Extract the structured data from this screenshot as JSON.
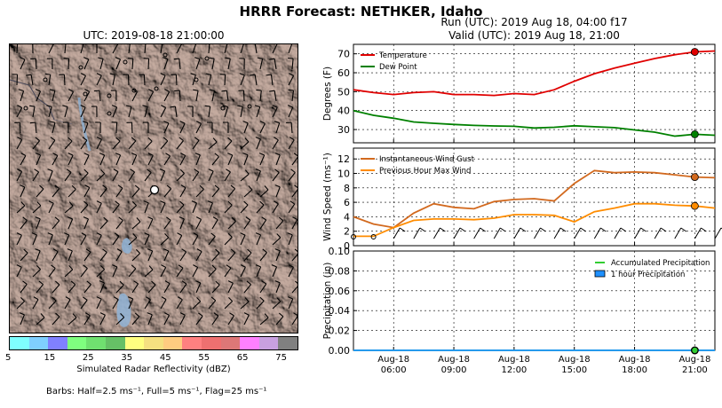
{
  "title": "HRRR Forecast: NETHKER, Idaho",
  "map": {
    "title": "UTC: 2019-08-18 21:00:00",
    "colorbar": {
      "label": "Simulated Radar Reflectivity (dBZ)",
      "ticks": [
        "5",
        "15",
        "25",
        "35",
        "45",
        "55",
        "65",
        "75"
      ],
      "colors": [
        "#7fffff",
        "#7fcfff",
        "#8080ff",
        "#7fff7f",
        "#70e070",
        "#66c066",
        "#ffff80",
        "#f5e080",
        "#ffcc80",
        "#ff8080",
        "#ee7070",
        "#dd7777",
        "#ff80ff",
        "#c8a0e0",
        "#808080"
      ]
    },
    "barb_note": "Barbs: Half=2.5 ms⁻¹, Full=5 ms⁻¹, Flag=25 ms⁻¹"
  },
  "run": {
    "line1": "Run (UTC): 2019 Aug 18, 04:00 f17",
    "line2": "Valid (UTC): 2019 Aug 18, 21:00"
  },
  "chart_data": [
    {
      "type": "line",
      "ylabel": "Degrees (F)",
      "ylim": [
        23,
        75
      ],
      "yticks": [
        30,
        40,
        50,
        60,
        70
      ],
      "legend_position": "top-left",
      "x": [
        4,
        5,
        6,
        7,
        8,
        9,
        10,
        11,
        12,
        13,
        14,
        15,
        16,
        17,
        18,
        19,
        20,
        21,
        22
      ],
      "series": [
        {
          "name": "Temperature",
          "color": "#e00000",
          "values": [
            51,
            49.5,
            48.5,
            49.5,
            50,
            48.5,
            48.5,
            48,
            49,
            48.5,
            51,
            55.5,
            59.5,
            62.5,
            65,
            67.5,
            69.5,
            71,
            71.5
          ]
        },
        {
          "name": "Dew Point",
          "color": "#008000",
          "values": [
            40,
            37.5,
            36,
            34,
            33.3,
            32.7,
            32.2,
            31.9,
            31.7,
            30.8,
            31.2,
            32,
            31.5,
            31,
            29.8,
            28.6,
            26.5,
            27.5,
            27
          ]
        }
      ]
    },
    {
      "type": "line",
      "ylabel": "Wind Speed (ms⁻¹)",
      "ylim": [
        0,
        13.5
      ],
      "yticks": [
        0,
        2,
        4,
        6,
        8,
        10,
        12
      ],
      "legend_position": "top-left",
      "x": [
        4,
        5,
        6,
        7,
        8,
        9,
        10,
        11,
        12,
        13,
        14,
        15,
        16,
        17,
        18,
        19,
        20,
        21,
        22
      ],
      "series": [
        {
          "name": "Instantaneous Wind Gust",
          "color": "#d2691e",
          "values": [
            4,
            3,
            2.5,
            4.5,
            5.8,
            5.3,
            5.1,
            6.1,
            6.4,
            6.5,
            6.2,
            8.6,
            10.4,
            10.1,
            10.2,
            10.1,
            9.8,
            9.5,
            9.4
          ]
        },
        {
          "name": "Previous Hour Max Wind",
          "color": "#ff8c00",
          "values": [
            1.3,
            1.3,
            2.5,
            3.5,
            3.7,
            3.7,
            3.6,
            3.8,
            4.3,
            4.3,
            4.2,
            3.3,
            4.7,
            5.2,
            5.8,
            5.8,
            5.6,
            5.5,
            5.2
          ]
        }
      ]
    },
    {
      "type": "line",
      "ylabel": "Precipitation (in)",
      "ylim": [
        0,
        0.1
      ],
      "yticks": [
        "0.00",
        "0.02",
        "0.04",
        "0.06",
        "0.08",
        "0.10"
      ],
      "legend_position": "top-right",
      "x_tick_labels": [
        [
          "Aug-18",
          "06:00"
        ],
        [
          "Aug-18",
          "09:00"
        ],
        [
          "Aug-18",
          "12:00"
        ],
        [
          "Aug-18",
          "15:00"
        ],
        [
          "Aug-18",
          "18:00"
        ],
        [
          "Aug-18",
          "21:00"
        ]
      ],
      "x_tick_hours": [
        6,
        9,
        12,
        15,
        18,
        21
      ],
      "series": [
        {
          "name": "Accumulated Precipitation",
          "color": "#32cd32",
          "values": [
            0,
            0,
            0,
            0,
            0,
            0,
            0,
            0,
            0,
            0,
            0,
            0,
            0,
            0,
            0,
            0,
            0,
            0,
            0
          ]
        },
        {
          "name": "1 hour Precipitation",
          "color": "#1e90ff",
          "values": [
            0,
            0,
            0,
            0,
            0,
            0,
            0,
            0,
            0,
            0,
            0,
            0,
            0,
            0,
            0,
            0,
            0,
            0,
            0
          ]
        }
      ]
    }
  ]
}
